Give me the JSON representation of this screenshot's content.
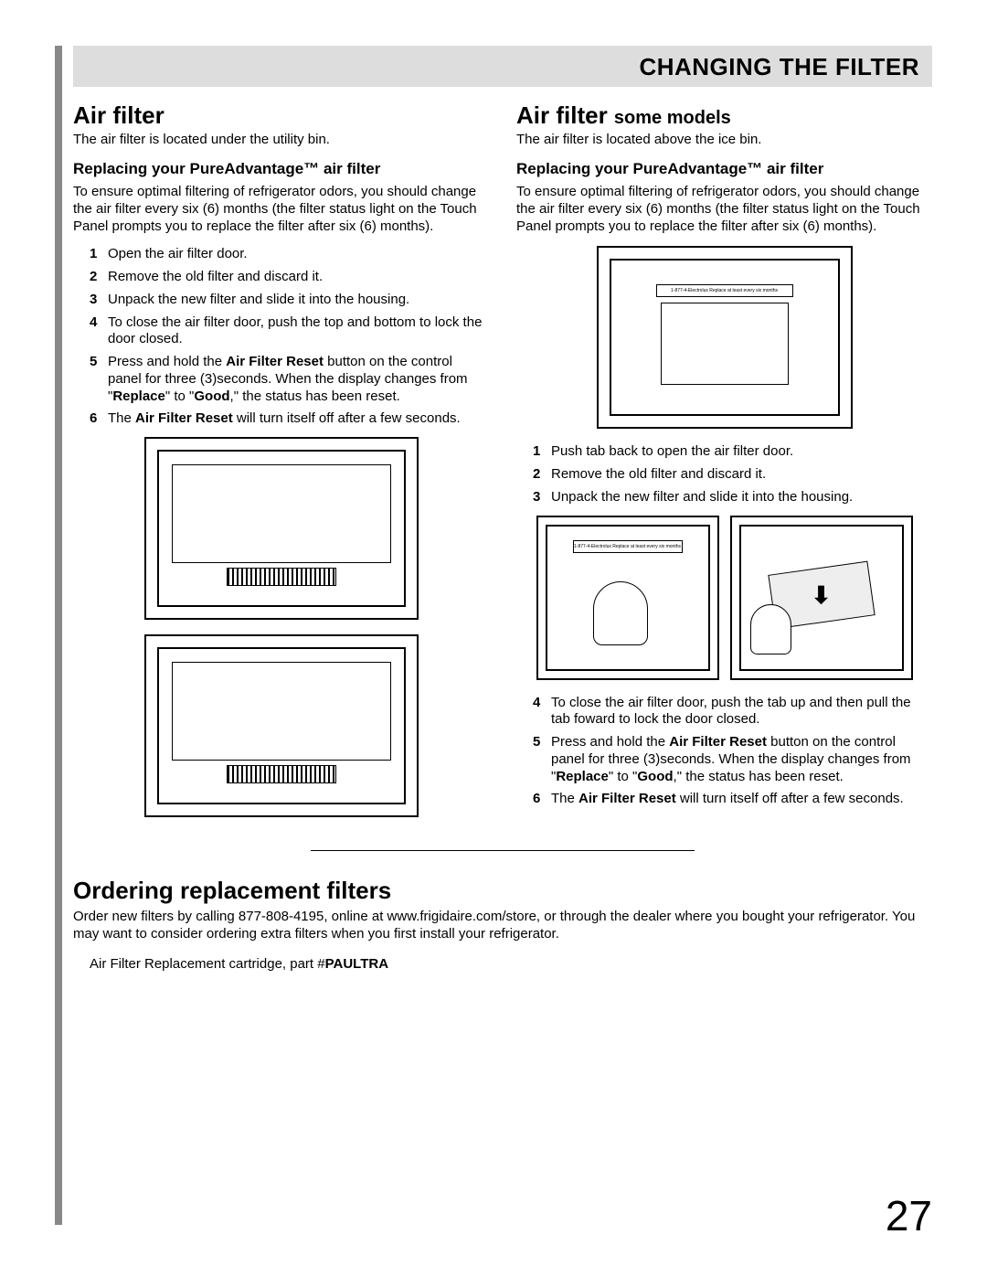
{
  "header": {
    "title": "CHANGING THE FILTER"
  },
  "left": {
    "h2": "Air filter",
    "intro": "The air filter is located under the utility bin.",
    "h3": "Replacing your PureAdvantage™ air filter",
    "para": "To ensure optimal filtering of refrigerator odors, you should change the air filter every six (6) months (the filter status light on the Touch Panel prompts you to replace the filter after six (6) months).",
    "steps": [
      "Open the air filter door.",
      "Remove the old filter and discard it.",
      "Unpack the new filter and slide it into the housing.",
      "To close the air filter door, push the top and bottom to lock the door closed.",
      "Press and hold the <b>Air Filter Reset</b> button on the control panel for three (3)seconds. When the display changes from \"<b>Replace</b>\" to \"<b>Good</b>,\" the status has been reset.",
      "The <b>Air Filter Reset</b> will turn itself off after a few seconds."
    ]
  },
  "right": {
    "h2": "Air filter",
    "h2_sub": "some models",
    "intro": "The air filter is located above the ice bin.",
    "h3": "Replacing your PureAdvantage™ air filter",
    "para": "To ensure optimal filtering of refrigerator odors, you should change the air filter every six (6) months (the filter status light on the Touch Panel prompts you to replace the filter after six (6) months).",
    "steps_a": [
      "Push tab back to open the air filter door.",
      "Remove the old filter and discard it.",
      "Unpack the new filter and slide it into the housing."
    ],
    "steps_b": [
      "To close the air filter door, push the tab up and then pull the tab foward to lock the door closed.",
      "Press and hold the <b>Air Filter Reset</b> button on the control panel for three (3)seconds. When the display changes from \"<b>Replace</b>\" to \"<b>Good</b>,\" the status has been reset.",
      "The <b>Air Filter Reset</b> will turn itself off after a few seconds."
    ],
    "label_strip": "1-877-4-Electrolux        Replace at least every six months"
  },
  "ordering": {
    "h2": "Ordering replacement filters",
    "para": "Order new filters by calling 877-808-4195, online at www.frigidaire.com/store, or through the dealer where you bought your refrigerator. You may want to consider ordering extra filters when you first install your refrigerator.",
    "part": "Air Filter Replacement cartridge, part #",
    "part_num": "PAULTRA"
  },
  "page_number": "27"
}
